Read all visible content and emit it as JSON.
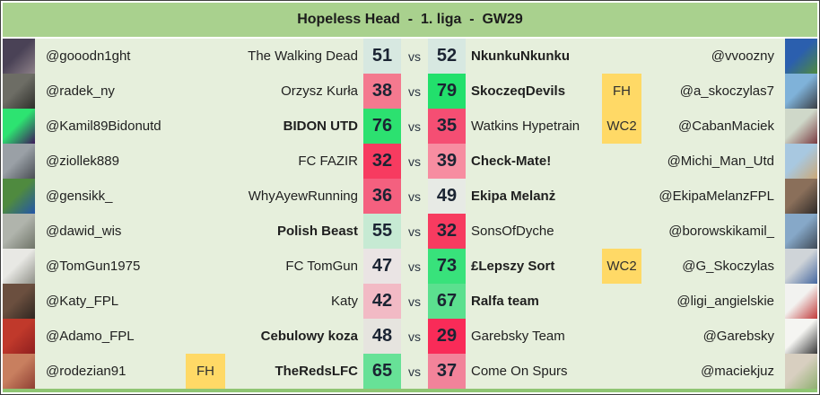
{
  "header": {
    "title": "Hopeless Head  -  1. liga  -  GW29"
  },
  "labels": {
    "vs": "vs"
  },
  "colors": {
    "header_bg": "#a9d18e",
    "row_bg": "#e6efdc",
    "chip_bg": "#ffd966",
    "bottom_border": "#8fc573",
    "score_text": "#1b2433",
    "body_text": "#1f1f1f"
  },
  "matches": [
    {
      "left": {
        "handle": "@gooodn1ght",
        "team": "The Walking Dead",
        "score": "51",
        "score_bg": "#d7e8e1",
        "winner": false,
        "chip": "",
        "avatar_desc": "person in dark hoodie with black face mask",
        "avatar_colors": [
          "#4a4256",
          "#8d8088"
        ]
      },
      "right": {
        "handle": "@vvoozny",
        "team": "NkunkuNkunku",
        "score": "52",
        "score_bg": "#d7e8e1",
        "winner": true,
        "chip": "",
        "avatar_desc": "footballer in blue kit on green pitch",
        "avatar_colors": [
          "#2b5fae",
          "#4f8a3f"
        ]
      }
    },
    {
      "left": {
        "handle": "@radek_ny",
        "team": "Orzysz Kurła",
        "score": "38",
        "score_bg": "#f4798f",
        "winner": false,
        "chip": "",
        "avatar_desc": "gray skull artwork",
        "avatar_colors": [
          "#6d6d65",
          "#2e2e2a"
        ]
      },
      "right": {
        "handle": "@a_skoczylas7",
        "team": "SkoczeqDevils",
        "score": "79",
        "score_bg": "#22e06c",
        "winner": true,
        "chip": "FH",
        "avatar_desc": "person in black shirt against sky",
        "avatar_colors": [
          "#7fb2d9",
          "#3a3f45"
        ]
      }
    },
    {
      "left": {
        "handle": "@Kamil89Bidonutd",
        "team": "BIDON UTD",
        "score": "76",
        "score_bg": "#2ce170",
        "winner": true,
        "chip": "",
        "avatar_desc": "purple Premier League lion logo on bright green",
        "avatar_colors": [
          "#2de371",
          "#3d195b"
        ]
      },
      "right": {
        "handle": "@CabanMaciek",
        "team": "Watkins Hypetrain",
        "score": "35",
        "score_bg": "#f54e73",
        "winner": false,
        "chip": "WC2",
        "avatar_desc": "woman in maroon shirt outdoors",
        "avatar_colors": [
          "#cfd8c9",
          "#7a3b41"
        ]
      }
    },
    {
      "left": {
        "handle": "@ziollek889",
        "team": "FC FAZIR",
        "score": "32",
        "score_bg": "#f73b60",
        "winner": false,
        "chip": "",
        "avatar_desc": "person at desk in gray room",
        "avatar_colors": [
          "#9aa0a6",
          "#4a4e54"
        ]
      },
      "right": {
        "handle": "@Michi_Man_Utd",
        "team": "Check-Mate!",
        "score": "39",
        "score_bg": "#f78da1",
        "winner": true,
        "chip": "",
        "avatar_desc": "man with hand on chin, blue sky backdrop",
        "avatar_colors": [
          "#a8c8e0",
          "#caa878"
        ]
      }
    },
    {
      "left": {
        "handle": "@gensikk_",
        "team": "WhyAyewRunning",
        "score": "36",
        "score_bg": "#f4607f",
        "winner": false,
        "chip": "",
        "avatar_desc": "footballer in blue on green pitch",
        "avatar_colors": [
          "#4f8a3f",
          "#2456a8"
        ]
      },
      "right": {
        "handle": "@EkipaMelanzFPL",
        "team": "Ekipa Melanż",
        "score": "49",
        "score_bg": "#e7eae5",
        "winner": true,
        "chip": "",
        "avatar_desc": "bearded man with sunglasses",
        "avatar_colors": [
          "#8a6f5a",
          "#2f2a28"
        ]
      }
    },
    {
      "left": {
        "handle": "@dawid_wis",
        "team": "Polish Beast",
        "score": "55",
        "score_bg": "#c6ead3",
        "winner": true,
        "chip": "",
        "avatar_desc": "man in gray bucket hat",
        "avatar_colors": [
          "#b0b4ac",
          "#6f7468"
        ]
      },
      "right": {
        "handle": "@borowskikamil_",
        "team": "SonsOfDyche",
        "score": "32",
        "score_bg": "#f73b60",
        "winner": false,
        "chip": "",
        "avatar_desc": "person standing in mountains",
        "avatar_colors": [
          "#86a8c8",
          "#3f4a56"
        ]
      }
    },
    {
      "left": {
        "handle": "@TomGun1975",
        "team": "FC TomGun",
        "score": "47",
        "score_bg": "#eae4e4",
        "winner": false,
        "chip": "",
        "avatar_desc": "skeleton cowboy sketch on white",
        "avatar_colors": [
          "#e8e8e4",
          "#8f9088"
        ]
      },
      "right": {
        "handle": "@G_Skoczylas",
        "team": "£Lepszy Sort",
        "score": "73",
        "score_bg": "#38e27b",
        "winner": true,
        "chip": "WC2",
        "avatar_desc": "smiling man in blue shirt",
        "avatar_colors": [
          "#cfd4d8",
          "#4668a0"
        ]
      }
    },
    {
      "left": {
        "handle": "@Katy_FPL",
        "team": "Katy",
        "score": "42",
        "score_bg": "#f2bac5",
        "winner": false,
        "chip": "",
        "avatar_desc": "man with dark glasses, warm tones",
        "avatar_colors": [
          "#6b4f3f",
          "#2f2620"
        ]
      },
      "right": {
        "handle": "@ligi_angielskie",
        "team": "Ralfa team",
        "score": "67",
        "score_bg": "#5be08f",
        "winner": true,
        "chip": "",
        "avatar_desc": "soccer ball graphic with red accents",
        "avatar_colors": [
          "#f2f2f0",
          "#c23b3b"
        ]
      }
    },
    {
      "left": {
        "handle": "@Adamo_FPL",
        "team": "Cebulowy koza",
        "score": "48",
        "score_bg": "#e6e4df",
        "winner": true,
        "chip": "",
        "avatar_desc": "footballers in red shirts celebrating",
        "avatar_colors": [
          "#c0392b",
          "#8f1f1f"
        ]
      },
      "right": {
        "handle": "@Garebsky",
        "team": "Garebsky Team",
        "score": "29",
        "score_bg": "#f92b58",
        "winner": false,
        "chip": "",
        "avatar_desc": "cartoon panda with red FPL badge",
        "avatar_colors": [
          "#f5f5f2",
          "#3a3a3a"
        ]
      }
    },
    {
      "left": {
        "handle": "@rodezian91",
        "team": "TheRedsLFC",
        "score": "65",
        "score_bg": "#67e197",
        "winner": true,
        "chip": "FH",
        "avatar_desc": "shirtless footballer celebrating",
        "avatar_colors": [
          "#c87f5f",
          "#8f3f33"
        ]
      },
      "right": {
        "handle": "@maciekjuz",
        "team": "Come On Spurs",
        "score": "37",
        "score_bg": "#f2839a",
        "winner": false,
        "chip": "",
        "avatar_desc": "green plush toy on light bedding",
        "avatar_colors": [
          "#d8cfc0",
          "#8faf70"
        ]
      }
    }
  ],
  "chart_data": {
    "type": "table",
    "title": "Hopeless Head - 1. liga - GW29",
    "columns": [
      "manager_left",
      "team_left",
      "score_left",
      "score_right",
      "team_right",
      "manager_right",
      "chip",
      "chip_side",
      "winner_side"
    ],
    "rows": [
      [
        "@gooodn1ght",
        "The Walking Dead",
        51,
        52,
        "NkunkuNkunku",
        "@vvoozny",
        "",
        "",
        "right"
      ],
      [
        "@radek_ny",
        "Orzysz Kurła",
        38,
        79,
        "SkoczeqDevils",
        "@a_skoczylas7",
        "FH",
        "right",
        "right"
      ],
      [
        "@Kamil89Bidonutd",
        "BIDON UTD",
        76,
        35,
        "Watkins Hypetrain",
        "@CabanMaciek",
        "WC2",
        "right",
        "left"
      ],
      [
        "@ziollek889",
        "FC FAZIR",
        32,
        39,
        "Check-Mate!",
        "@Michi_Man_Utd",
        "",
        "",
        "right"
      ],
      [
        "@gensikk_",
        "WhyAyewRunning",
        36,
        49,
        "Ekipa Melanż",
        "@EkipaMelanzFPL",
        "",
        "",
        "right"
      ],
      [
        "@dawid_wis",
        "Polish Beast",
        55,
        32,
        "SonsOfDyche",
        "@borowskikamil_",
        "",
        "",
        "left"
      ],
      [
        "@TomGun1975",
        "FC TomGun",
        47,
        73,
        "£Lepszy Sort",
        "@G_Skoczylas",
        "WC2",
        "right",
        "right"
      ],
      [
        "@Katy_FPL",
        "Katy",
        42,
        67,
        "Ralfa team",
        "@ligi_angielskie",
        "",
        "",
        "right"
      ],
      [
        "@Adamo_FPL",
        "Cebulowy koza",
        48,
        29,
        "Garebsky Team",
        "@Garebsky",
        "",
        "",
        "left"
      ],
      [
        "@rodezian91",
        "TheRedsLFC",
        65,
        37,
        "Come On Spurs",
        "@maciekjuz",
        "FH",
        "left",
        "left"
      ]
    ],
    "legend": "score cell color scale: red = low score, white = ~50, green = high score; winner team name bold; FH/WC2 = chip played"
  }
}
